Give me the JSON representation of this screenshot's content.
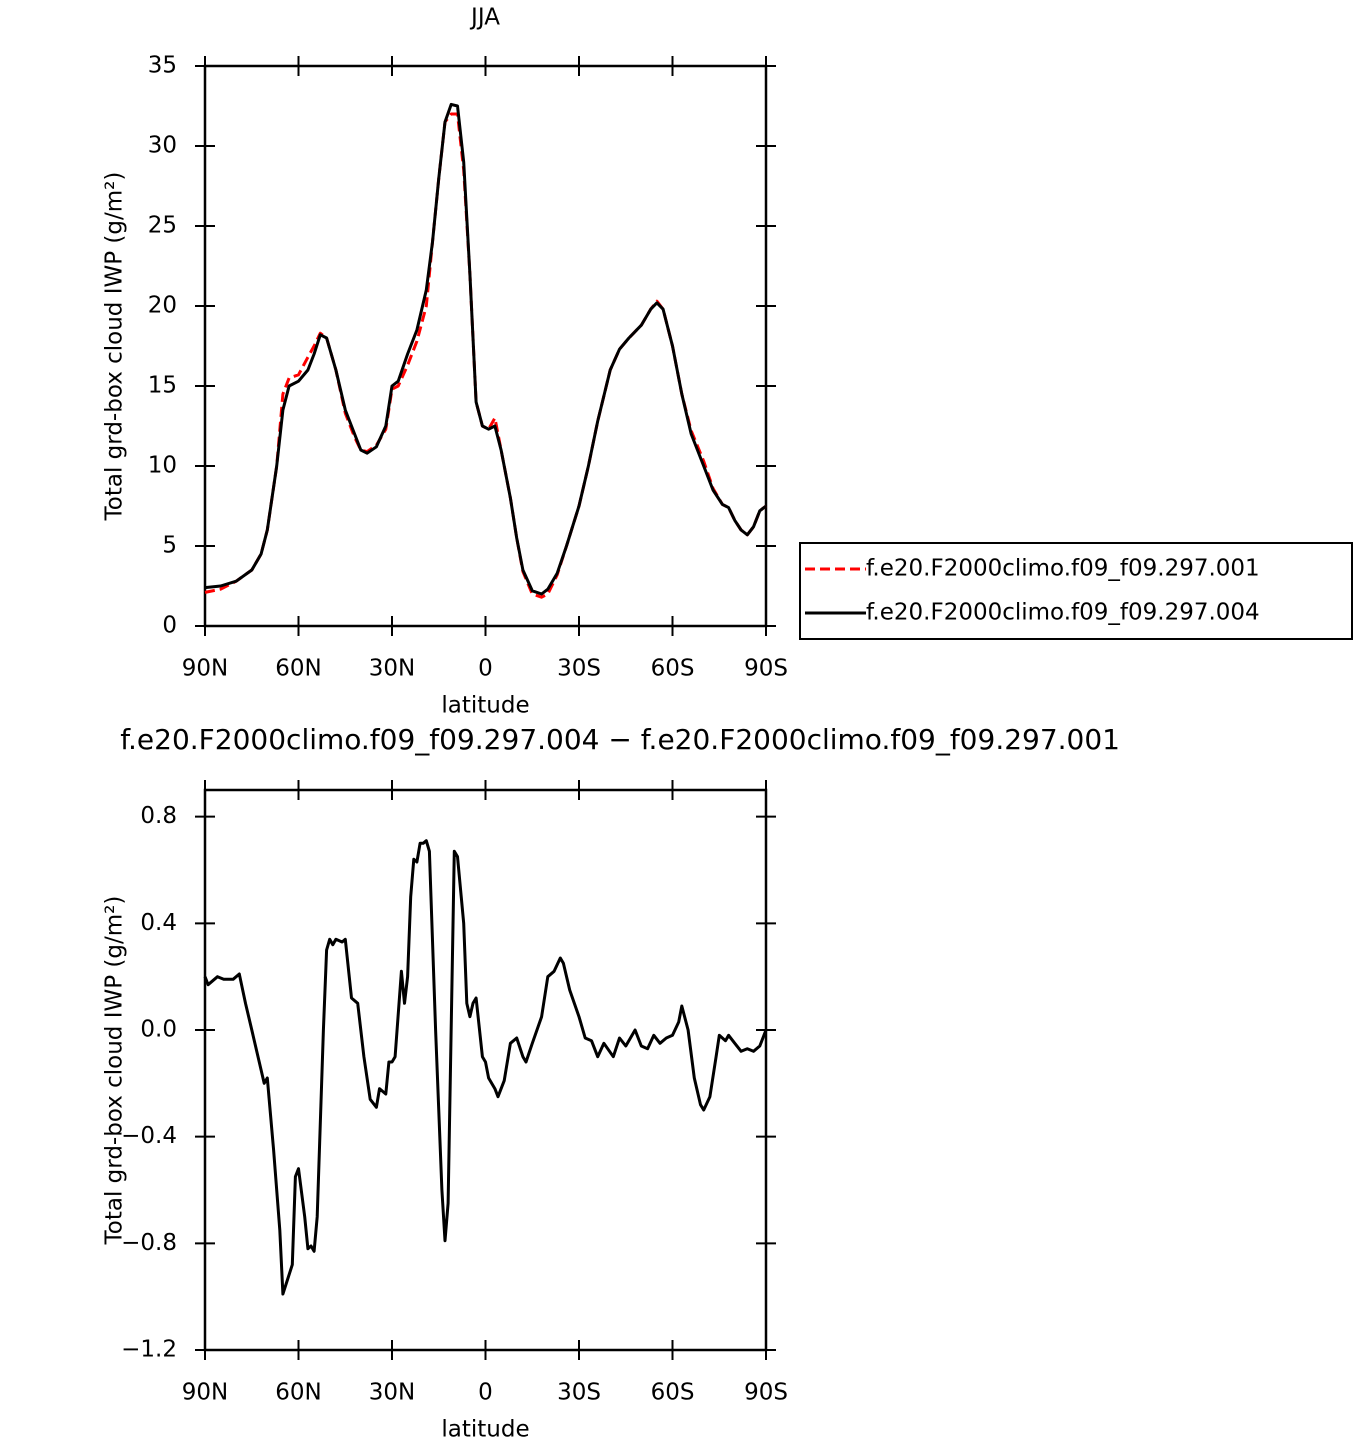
{
  "chart_data": [
    {
      "type": "line",
      "title": "JJA",
      "x_label": "latitude",
      "y_label": "Total grd-box cloud IWP (g/m²)",
      "x": [
        90,
        85,
        80,
        75,
        72,
        70,
        67,
        65,
        63,
        60,
        57,
        55,
        53,
        51,
        48,
        45,
        42,
        40,
        38,
        35,
        32,
        30,
        28,
        25,
        22,
        19,
        17,
        15,
        13,
        11,
        9,
        7,
        5,
        3,
        1,
        -1,
        -3,
        -5,
        -8,
        -10,
        -12,
        -15,
        -18,
        -20,
        -23,
        -26,
        -30,
        -33,
        -36,
        -40,
        -43,
        -46,
        -50,
        -53,
        -55,
        -57,
        -60,
        -63,
        -66,
        -70,
        -73,
        -76,
        -78,
        -80,
        -82,
        -84,
        -86,
        -88,
        -90
      ],
      "xlim": [
        90,
        -90
      ],
      "xticks": [
        {
          "value": 90,
          "label": "90N"
        },
        {
          "value": 60,
          "label": "60N"
        },
        {
          "value": 30,
          "label": "30N"
        },
        0,
        {
          "value": -30,
          "label": "30S"
        },
        {
          "value": -60,
          "label": "60S"
        },
        {
          "value": -90,
          "label": "90S"
        }
      ],
      "ylim": [
        0,
        35
      ],
      "yticks": [
        0,
        5,
        10,
        15,
        20,
        25,
        30,
        35
      ],
      "legend": "right",
      "series": [
        {
          "name": "f.e20.F2000climo.f09_f09.297.001",
          "color": "#ff0000",
          "line_style": "dashed",
          "values": [
            2.1,
            2.3,
            2.8,
            3.5,
            4.5,
            6,
            10,
            14.5,
            15.5,
            15.7,
            16.8,
            17.5,
            18.3,
            18,
            16,
            13.3,
            11.8,
            11,
            10.9,
            11.3,
            12.3,
            14.8,
            15,
            16.3,
            17.8,
            20,
            24,
            28,
            31.5,
            32,
            32,
            28.5,
            22,
            14,
            12.5,
            12.3,
            13,
            11,
            8,
            5.5,
            3.4,
            2,
            1.8,
            2,
            3.2,
            5,
            7.5,
            10,
            12.8,
            16,
            17.3,
            18,
            18.8,
            19.8,
            20.3,
            19.8,
            17.5,
            14.5,
            12.2,
            10.3,
            8.6,
            7.6,
            7.4,
            6.6,
            6,
            5.7,
            6.2,
            7.2,
            7.5
          ]
        },
        {
          "name": "f.e20.F2000climo.f09_f09.297.004",
          "color": "#000000",
          "line_style": "solid",
          "values": [
            2.4,
            2.5,
            2.8,
            3.5,
            4.5,
            6,
            10,
            13.5,
            15,
            15.3,
            16,
            17,
            18.2,
            18,
            16,
            13.5,
            12,
            11,
            10.8,
            11.2,
            12.5,
            15,
            15.3,
            17,
            18.5,
            21,
            24,
            28,
            31.5,
            32.6,
            32.5,
            29,
            22,
            14,
            12.5,
            12.3,
            12.5,
            11,
            8,
            5.5,
            3.5,
            2.2,
            2,
            2.3,
            3.3,
            5,
            7.5,
            10,
            12.8,
            16,
            17.3,
            18,
            18.8,
            19.8,
            20.2,
            19.8,
            17.5,
            14.5,
            12,
            10,
            8.5,
            7.6,
            7.4,
            6.6,
            6,
            5.7,
            6.2,
            7.2,
            7.5
          ]
        }
      ]
    },
    {
      "type": "line",
      "title": "f.e20.F2000climo.f09_f09.297.004 − f.e20.F2000climo.f09_f09.297.001",
      "x_label": "latitude",
      "y_label": "Total grd-box cloud IWP (g/m²)",
      "x": [
        90,
        89,
        86,
        84,
        81,
        79,
        77,
        75,
        73,
        71,
        70,
        68,
        66,
        65,
        62,
        61,
        60,
        58,
        57,
        56,
        55,
        54,
        52,
        51,
        50,
        49,
        48,
        46,
        45,
        43,
        41,
        39,
        37,
        35,
        34,
        32,
        31,
        30,
        29,
        27,
        26,
        25,
        24,
        23,
        22,
        21,
        20,
        19,
        18,
        16,
        14,
        13,
        12,
        10,
        9,
        7,
        6,
        5,
        4,
        3,
        1,
        0,
        -1,
        -3,
        -4,
        -6,
        -8,
        -10,
        -12,
        -13,
        -15,
        -18,
        -20,
        -22,
        -24,
        -25,
        -27,
        -30,
        -32,
        -34,
        -36,
        -38,
        -41,
        -43,
        -45,
        -48,
        -50,
        -52,
        -54,
        -56,
        -58,
        -60,
        -62,
        -63,
        -65,
        -67,
        -69,
        -70,
        -72,
        -74,
        -75,
        -77,
        -78,
        -80,
        -82,
        -84,
        -86,
        -88,
        -90
      ],
      "xlim": [
        90,
        -90
      ],
      "xticks": [
        {
          "value": 90,
          "label": "90N"
        },
        {
          "value": 60,
          "label": "60N"
        },
        {
          "value": 30,
          "label": "30N"
        },
        0,
        {
          "value": -30,
          "label": "30S"
        },
        {
          "value": -60,
          "label": "60S"
        },
        {
          "value": -90,
          "label": "90S"
        }
      ],
      "ylim": [
        -1.2,
        0.9
      ],
      "yticks": [
        {
          "value": -1.2,
          "label": "−1.2"
        },
        {
          "value": -0.8,
          "label": "−0.8"
        },
        {
          "value": -0.4,
          "label": "−0.4"
        },
        {
          "value": 0,
          "label": "0.0"
        },
        0.4,
        0.8
      ],
      "series": [
        {
          "color": "#000000",
          "line_style": "solid",
          "values": [
            0.2,
            0.17,
            0.2,
            0.19,
            0.19,
            0.21,
            0.1,
            0.0,
            -0.1,
            -0.2,
            -0.18,
            -0.45,
            -0.75,
            -0.99,
            -0.88,
            -0.55,
            -0.52,
            -0.7,
            -0.82,
            -0.81,
            -0.83,
            -0.7,
            0.0,
            0.3,
            0.34,
            0.32,
            0.34,
            0.33,
            0.34,
            0.12,
            0.1,
            -0.1,
            -0.26,
            -0.29,
            -0.22,
            -0.24,
            -0.12,
            -0.12,
            -0.1,
            0.22,
            0.1,
            0.2,
            0.5,
            0.64,
            0.63,
            0.7,
            0.7,
            0.71,
            0.67,
            0.0,
            -0.6,
            -0.79,
            -0.65,
            0.67,
            0.65,
            0.4,
            0.1,
            0.05,
            0.1,
            0.12,
            -0.1,
            -0.12,
            -0.18,
            -0.22,
            -0.25,
            -0.19,
            -0.05,
            -0.03,
            -0.1,
            -0.12,
            -0.05,
            0.05,
            0.2,
            0.22,
            0.27,
            0.25,
            0.15,
            0.05,
            -0.03,
            -0.04,
            -0.1,
            -0.05,
            -0.1,
            -0.03,
            -0.06,
            0.0,
            -0.06,
            -0.07,
            -0.02,
            -0.05,
            -0.03,
            -0.02,
            0.03,
            0.09,
            0.0,
            -0.18,
            -0.28,
            -0.3,
            -0.25,
            -0.1,
            -0.02,
            -0.04,
            -0.02,
            -0.05,
            -0.08,
            -0.07,
            -0.08,
            -0.06,
            0.0
          ]
        }
      ]
    }
  ]
}
